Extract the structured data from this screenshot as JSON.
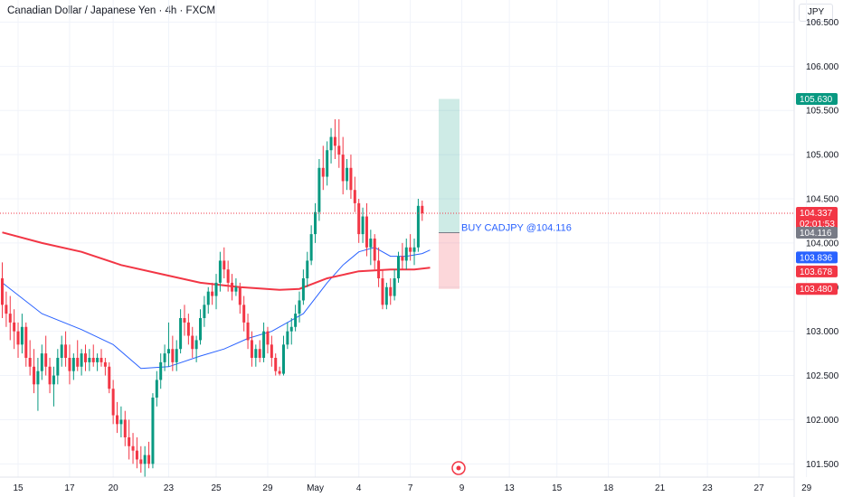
{
  "header": {
    "title": "Canadian Dollar / Japanese Yen · 4h · FXCM",
    "currency": "JPY"
  },
  "order": {
    "label": "BUY CADJPY @104.116",
    "entry": 104.116,
    "target": 105.63,
    "stop": 103.48
  },
  "price_badges": [
    {
      "label": "105.630",
      "value": 105.63,
      "color": "#089981"
    },
    {
      "label": "104.337",
      "sub": "02:01:53",
      "value": 104.337,
      "color": "#f23645"
    },
    {
      "label": "104.116",
      "value": 104.116,
      "color": "#787b86"
    },
    {
      "label": "103.836",
      "value": 103.836,
      "color": "#2962ff"
    },
    {
      "label": "103.678",
      "value": 103.678,
      "color": "#f23645"
    },
    {
      "label": "103.480",
      "value": 103.48,
      "color": "#f23645"
    }
  ],
  "chart_data": {
    "type": "candlestick",
    "symbol": "CADJPY",
    "timeframe": "4h",
    "ylim": [
      101.35,
      106.75
    ],
    "y_ticks": [
      101.5,
      102.0,
      102.5,
      103.0,
      103.5,
      104.0,
      104.5,
      105.0,
      105.5,
      106.0,
      106.5
    ],
    "y_tick_labels": [
      "101.500",
      "102.000",
      "102.500",
      "103.000",
      "103.500",
      "104.000",
      "104.500",
      "105.000",
      "105.500",
      "106.000",
      "106.500"
    ],
    "x_tick_labels": [
      "15",
      "17",
      "20",
      "23",
      "25",
      "29",
      "May",
      "4",
      "7",
      "9",
      "13",
      "15",
      "18",
      "21",
      "23",
      "27",
      "29"
    ],
    "x_tick_bars": [
      4,
      17,
      28,
      42,
      54,
      67,
      79,
      90,
      103,
      116,
      128,
      140,
      153,
      166,
      178,
      191,
      203
    ],
    "last_price": 104.337,
    "candles": [
      [
        103.6,
        103.78,
        103.15,
        103.3
      ],
      [
        103.3,
        103.45,
        103.05,
        103.2
      ],
      [
        103.2,
        103.4,
        102.9,
        103.1
      ],
      [
        103.1,
        103.25,
        102.8,
        103.0
      ],
      [
        103.0,
        103.1,
        102.7,
        102.85
      ],
      [
        102.85,
        103.2,
        102.75,
        103.05
      ],
      [
        103.05,
        103.1,
        102.6,
        102.7
      ],
      [
        102.7,
        102.9,
        102.5,
        102.6
      ],
      [
        102.6,
        102.8,
        102.3,
        102.4
      ],
      [
        102.4,
        102.7,
        102.1,
        102.55
      ],
      [
        102.55,
        102.85,
        102.45,
        102.75
      ],
      [
        102.75,
        102.95,
        102.5,
        102.6
      ],
      [
        102.6,
        102.7,
        102.3,
        102.4
      ],
      [
        102.4,
        102.6,
        102.15,
        102.5
      ],
      [
        102.5,
        102.8,
        102.4,
        102.7
      ],
      [
        102.7,
        102.95,
        102.6,
        102.85
      ],
      [
        102.85,
        103.0,
        102.6,
        102.7
      ],
      [
        102.7,
        102.85,
        102.4,
        102.55
      ],
      [
        102.55,
        102.75,
        102.45,
        102.7
      ],
      [
        102.7,
        102.9,
        102.55,
        102.6
      ],
      [
        102.6,
        102.8,
        102.5,
        102.75
      ],
      [
        102.75,
        102.85,
        102.55,
        102.65
      ],
      [
        102.65,
        102.8,
        102.55,
        102.7
      ],
      [
        102.7,
        102.85,
        102.6,
        102.65
      ],
      [
        102.65,
        102.75,
        102.55,
        102.7
      ],
      [
        102.7,
        102.8,
        102.6,
        102.65
      ],
      [
        102.65,
        102.7,
        102.5,
        102.6
      ],
      [
        102.6,
        102.65,
        102.3,
        102.35
      ],
      [
        102.35,
        102.45,
        101.95,
        102.05
      ],
      [
        102.05,
        102.2,
        101.85,
        101.95
      ],
      [
        101.95,
        102.15,
        101.8,
        102.0
      ],
      [
        102.0,
        102.1,
        101.7,
        101.8
      ],
      [
        101.8,
        102.0,
        101.55,
        101.7
      ],
      [
        101.7,
        101.85,
        101.5,
        101.65
      ],
      [
        101.65,
        101.8,
        101.45,
        101.55
      ],
      [
        101.55,
        101.7,
        101.4,
        101.5
      ],
      [
        101.5,
        101.7,
        101.35,
        101.6
      ],
      [
        101.6,
        101.75,
        101.45,
        101.5
      ],
      [
        101.5,
        102.3,
        101.45,
        102.25
      ],
      [
        102.25,
        102.55,
        102.15,
        102.45
      ],
      [
        102.45,
        102.75,
        102.35,
        102.65
      ],
      [
        102.65,
        102.85,
        102.55,
        102.75
      ],
      [
        102.75,
        103.1,
        102.6,
        102.8
      ],
      [
        102.8,
        102.95,
        102.55,
        102.65
      ],
      [
        102.65,
        102.9,
        102.55,
        102.8
      ],
      [
        102.8,
        103.25,
        102.75,
        103.15
      ],
      [
        103.15,
        103.3,
        102.95,
        103.1
      ],
      [
        103.1,
        103.2,
        102.85,
        102.95
      ],
      [
        102.95,
        103.05,
        102.7,
        102.8
      ],
      [
        102.8,
        102.95,
        102.65,
        102.9
      ],
      [
        102.9,
        103.25,
        102.85,
        103.15
      ],
      [
        103.15,
        103.4,
        103.05,
        103.3
      ],
      [
        103.3,
        103.5,
        103.2,
        103.45
      ],
      [
        103.45,
        103.55,
        103.3,
        103.4
      ],
      [
        103.4,
        103.65,
        103.25,
        103.55
      ],
      [
        103.55,
        103.9,
        103.45,
        103.8
      ],
      [
        103.8,
        103.95,
        103.6,
        103.7
      ],
      [
        103.7,
        103.8,
        103.45,
        103.55
      ],
      [
        103.55,
        103.65,
        103.35,
        103.45
      ],
      [
        103.45,
        103.6,
        103.4,
        103.5
      ],
      [
        103.5,
        103.55,
        103.2,
        103.3
      ],
      [
        103.3,
        103.4,
        103.0,
        103.1
      ],
      [
        103.1,
        103.2,
        102.8,
        102.9
      ],
      [
        102.9,
        103.0,
        102.6,
        102.7
      ],
      [
        102.7,
        102.85,
        102.6,
        102.8
      ],
      [
        102.8,
        102.9,
        102.65,
        102.7
      ],
      [
        102.7,
        103.1,
        102.65,
        103.0
      ],
      [
        103.0,
        103.05,
        102.75,
        102.85
      ],
      [
        102.85,
        102.95,
        102.6,
        102.7
      ],
      [
        102.7,
        102.75,
        102.5,
        102.55
      ],
      [
        102.55,
        102.6,
        102.5,
        102.52
      ],
      [
        102.52,
        102.95,
        102.5,
        102.85
      ],
      [
        102.85,
        103.1,
        102.8,
        103.0
      ],
      [
        103.0,
        103.15,
        102.85,
        103.05
      ],
      [
        103.05,
        103.3,
        103.0,
        103.2
      ],
      [
        103.2,
        103.45,
        103.1,
        103.35
      ],
      [
        103.35,
        103.7,
        103.3,
        103.6
      ],
      [
        103.6,
        103.9,
        103.5,
        103.8
      ],
      [
        103.8,
        104.2,
        103.75,
        104.1
      ],
      [
        104.1,
        104.45,
        104.0,
        104.35
      ],
      [
        104.35,
        104.95,
        104.25,
        104.85
      ],
      [
        104.85,
        105.1,
        104.6,
        104.75
      ],
      [
        104.75,
        105.15,
        104.65,
        105.05
      ],
      [
        105.05,
        105.3,
        104.9,
        105.2
      ],
      [
        105.2,
        105.4,
        104.95,
        105.1
      ],
      [
        105.1,
        105.4,
        104.85,
        105.0
      ],
      [
        105.0,
        105.2,
        104.55,
        104.7
      ],
      [
        104.7,
        104.95,
        104.6,
        104.85
      ],
      [
        104.85,
        105.0,
        104.5,
        104.6
      ],
      [
        104.6,
        104.75,
        104.35,
        104.45
      ],
      [
        104.45,
        104.5,
        104.0,
        104.1
      ],
      [
        104.1,
        104.4,
        104.0,
        104.3
      ],
      [
        104.3,
        104.45,
        103.85,
        103.95
      ],
      [
        103.95,
        104.15,
        103.75,
        104.05
      ],
      [
        104.05,
        104.1,
        103.7,
        103.8
      ],
      [
        103.8,
        103.95,
        103.5,
        103.6
      ],
      [
        103.6,
        103.7,
        103.25,
        103.3
      ],
      [
        103.3,
        103.55,
        103.25,
        103.5
      ],
      [
        103.5,
        103.6,
        103.3,
        103.4
      ],
      [
        103.4,
        103.7,
        103.35,
        103.6
      ],
      [
        103.6,
        103.9,
        103.55,
        103.85
      ],
      [
        103.85,
        104.0,
        103.7,
        103.8
      ],
      [
        103.8,
        104.05,
        103.7,
        103.95
      ],
      [
        103.95,
        104.1,
        103.8,
        103.9
      ],
      [
        103.9,
        104.05,
        103.75,
        103.95
      ],
      [
        103.95,
        104.5,
        103.9,
        104.42
      ],
      [
        104.42,
        104.48,
        104.25,
        104.337
      ]
    ],
    "series": [
      {
        "type": "line",
        "color": "#2962ff",
        "points": [
          [
            0,
            103.55
          ],
          [
            10,
            103.2
          ],
          [
            20,
            103.02
          ],
          [
            28,
            102.85
          ],
          [
            35,
            102.58
          ],
          [
            42,
            102.6
          ],
          [
            50,
            102.72
          ],
          [
            56,
            102.8
          ],
          [
            62,
            102.92
          ],
          [
            68,
            103.0
          ],
          [
            76,
            103.2
          ],
          [
            82,
            103.55
          ],
          [
            86,
            103.75
          ],
          [
            90,
            103.9
          ],
          [
            94,
            103.95
          ],
          [
            98,
            103.85
          ],
          [
            102,
            103.85
          ],
          [
            106,
            103.88
          ],
          [
            108,
            103.92
          ]
        ]
      },
      {
        "type": "line",
        "color": "#f23645",
        "points": [
          [
            0,
            104.12
          ],
          [
            10,
            104.0
          ],
          [
            20,
            103.9
          ],
          [
            30,
            103.75
          ],
          [
            40,
            103.65
          ],
          [
            50,
            103.55
          ],
          [
            60,
            103.5
          ],
          [
            70,
            103.47
          ],
          [
            75,
            103.48
          ],
          [
            82,
            103.6
          ],
          [
            90,
            103.68
          ],
          [
            98,
            103.7
          ],
          [
            104,
            103.7
          ],
          [
            108,
            103.72
          ]
        ]
      }
    ]
  }
}
